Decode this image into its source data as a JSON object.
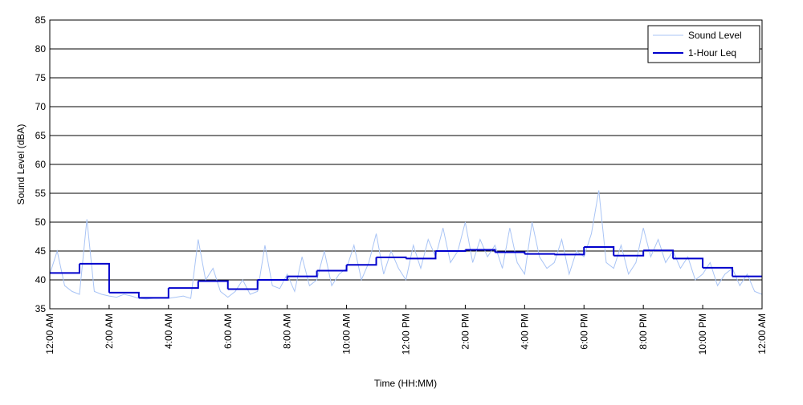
{
  "chart_data": {
    "type": "line",
    "xlabel": "Time (HH:MM)",
    "ylabel": "Sound Level (dBA)",
    "xlim": [
      0,
      24
    ],
    "xticks": [
      {
        "value": 0,
        "label": "12:00 AM"
      },
      {
        "value": 2,
        "label": "2:00 AM"
      },
      {
        "value": 4,
        "label": "4:00 AM"
      },
      {
        "value": 6,
        "label": "6:00 AM"
      },
      {
        "value": 8,
        "label": "8:00 AM"
      },
      {
        "value": 10,
        "label": "10:00 AM"
      },
      {
        "value": 12,
        "label": "12:00 PM"
      },
      {
        "value": 14,
        "label": "2:00 PM"
      },
      {
        "value": 16,
        "label": "4:00 PM"
      },
      {
        "value": 18,
        "label": "6:00 PM"
      },
      {
        "value": 20,
        "label": "8:00 PM"
      },
      {
        "value": 22,
        "label": "10:00 PM"
      },
      {
        "value": 24,
        "label": "12:00 AM"
      }
    ],
    "ylim": [
      35,
      85
    ],
    "yticks": [
      35,
      40,
      45,
      50,
      55,
      60,
      65,
      70,
      75,
      80,
      85
    ],
    "grid": true,
    "legend": "upper right",
    "series": [
      {
        "name": "Sound Level",
        "color": "#a9c4f5",
        "width": 1,
        "drawstyle": "default",
        "x": [
          0,
          0.25,
          0.5,
          0.75,
          1,
          1.25,
          1.5,
          1.75,
          2,
          2.25,
          2.5,
          2.75,
          3,
          3.25,
          3.5,
          3.75,
          4,
          4.25,
          4.5,
          4.75,
          5,
          5.25,
          5.5,
          5.75,
          6,
          6.25,
          6.5,
          6.75,
          7,
          7.25,
          7.5,
          7.75,
          8,
          8.25,
          8.5,
          8.75,
          9,
          9.25,
          9.5,
          9.75,
          10,
          10.25,
          10.5,
          10.75,
          11,
          11.25,
          11.5,
          11.75,
          12,
          12.25,
          12.5,
          12.75,
          13,
          13.25,
          13.5,
          13.75,
          14,
          14.25,
          14.5,
          14.75,
          15,
          15.25,
          15.5,
          15.75,
          16,
          16.25,
          16.5,
          16.75,
          17,
          17.25,
          17.5,
          17.75,
          18,
          18.25,
          18.5,
          18.75,
          19,
          19.25,
          19.5,
          19.75,
          20,
          20.25,
          20.5,
          20.75,
          21,
          21.25,
          21.5,
          21.75,
          22,
          22.25,
          22.5,
          22.75,
          23,
          23.25,
          23.5,
          23.75,
          24
        ],
        "values": [
          41,
          45,
          39,
          38,
          37.5,
          50.5,
          38,
          37.5,
          37.2,
          37,
          37.5,
          37.2,
          36.8,
          36.7,
          36.8,
          36.8,
          36.8,
          37,
          37.2,
          36.8,
          47,
          40,
          42,
          38,
          37,
          38,
          40,
          37.5,
          38,
          46,
          39,
          38.5,
          41,
          38,
          44,
          39,
          40,
          45,
          39,
          41,
          42,
          46,
          40,
          43,
          48,
          41,
          45,
          42,
          40,
          46,
          42,
          47,
          44,
          49,
          43,
          45,
          50,
          43,
          47,
          44,
          46,
          42,
          49,
          43,
          41,
          50,
          44,
          42,
          43,
          47,
          41,
          45,
          44,
          48,
          55.5,
          43,
          42,
          46,
          41,
          43,
          49,
          44,
          47,
          43,
          45,
          42,
          44,
          40,
          41,
          43,
          39,
          41,
          42,
          39,
          41,
          38,
          37.5
        ]
      },
      {
        "name": "1-Hour Leq",
        "color": "#0000cc",
        "width": 2,
        "drawstyle": "steps-post",
        "x": [
          0,
          1,
          2,
          3,
          4,
          5,
          6,
          7,
          8,
          9,
          10,
          11,
          12,
          13,
          14,
          15,
          16,
          17,
          18,
          19,
          20,
          21,
          22,
          23
        ],
        "values": [
          41.2,
          42.8,
          37.8,
          36.9,
          38.6,
          39.8,
          38.4,
          40.0,
          40.6,
          41.6,
          42.6,
          43.9,
          43.7,
          45.0,
          45.2,
          44.8,
          44.5,
          44.4,
          45.7,
          44.2,
          45.1,
          43.7,
          42.1,
          40.6
        ]
      }
    ]
  }
}
